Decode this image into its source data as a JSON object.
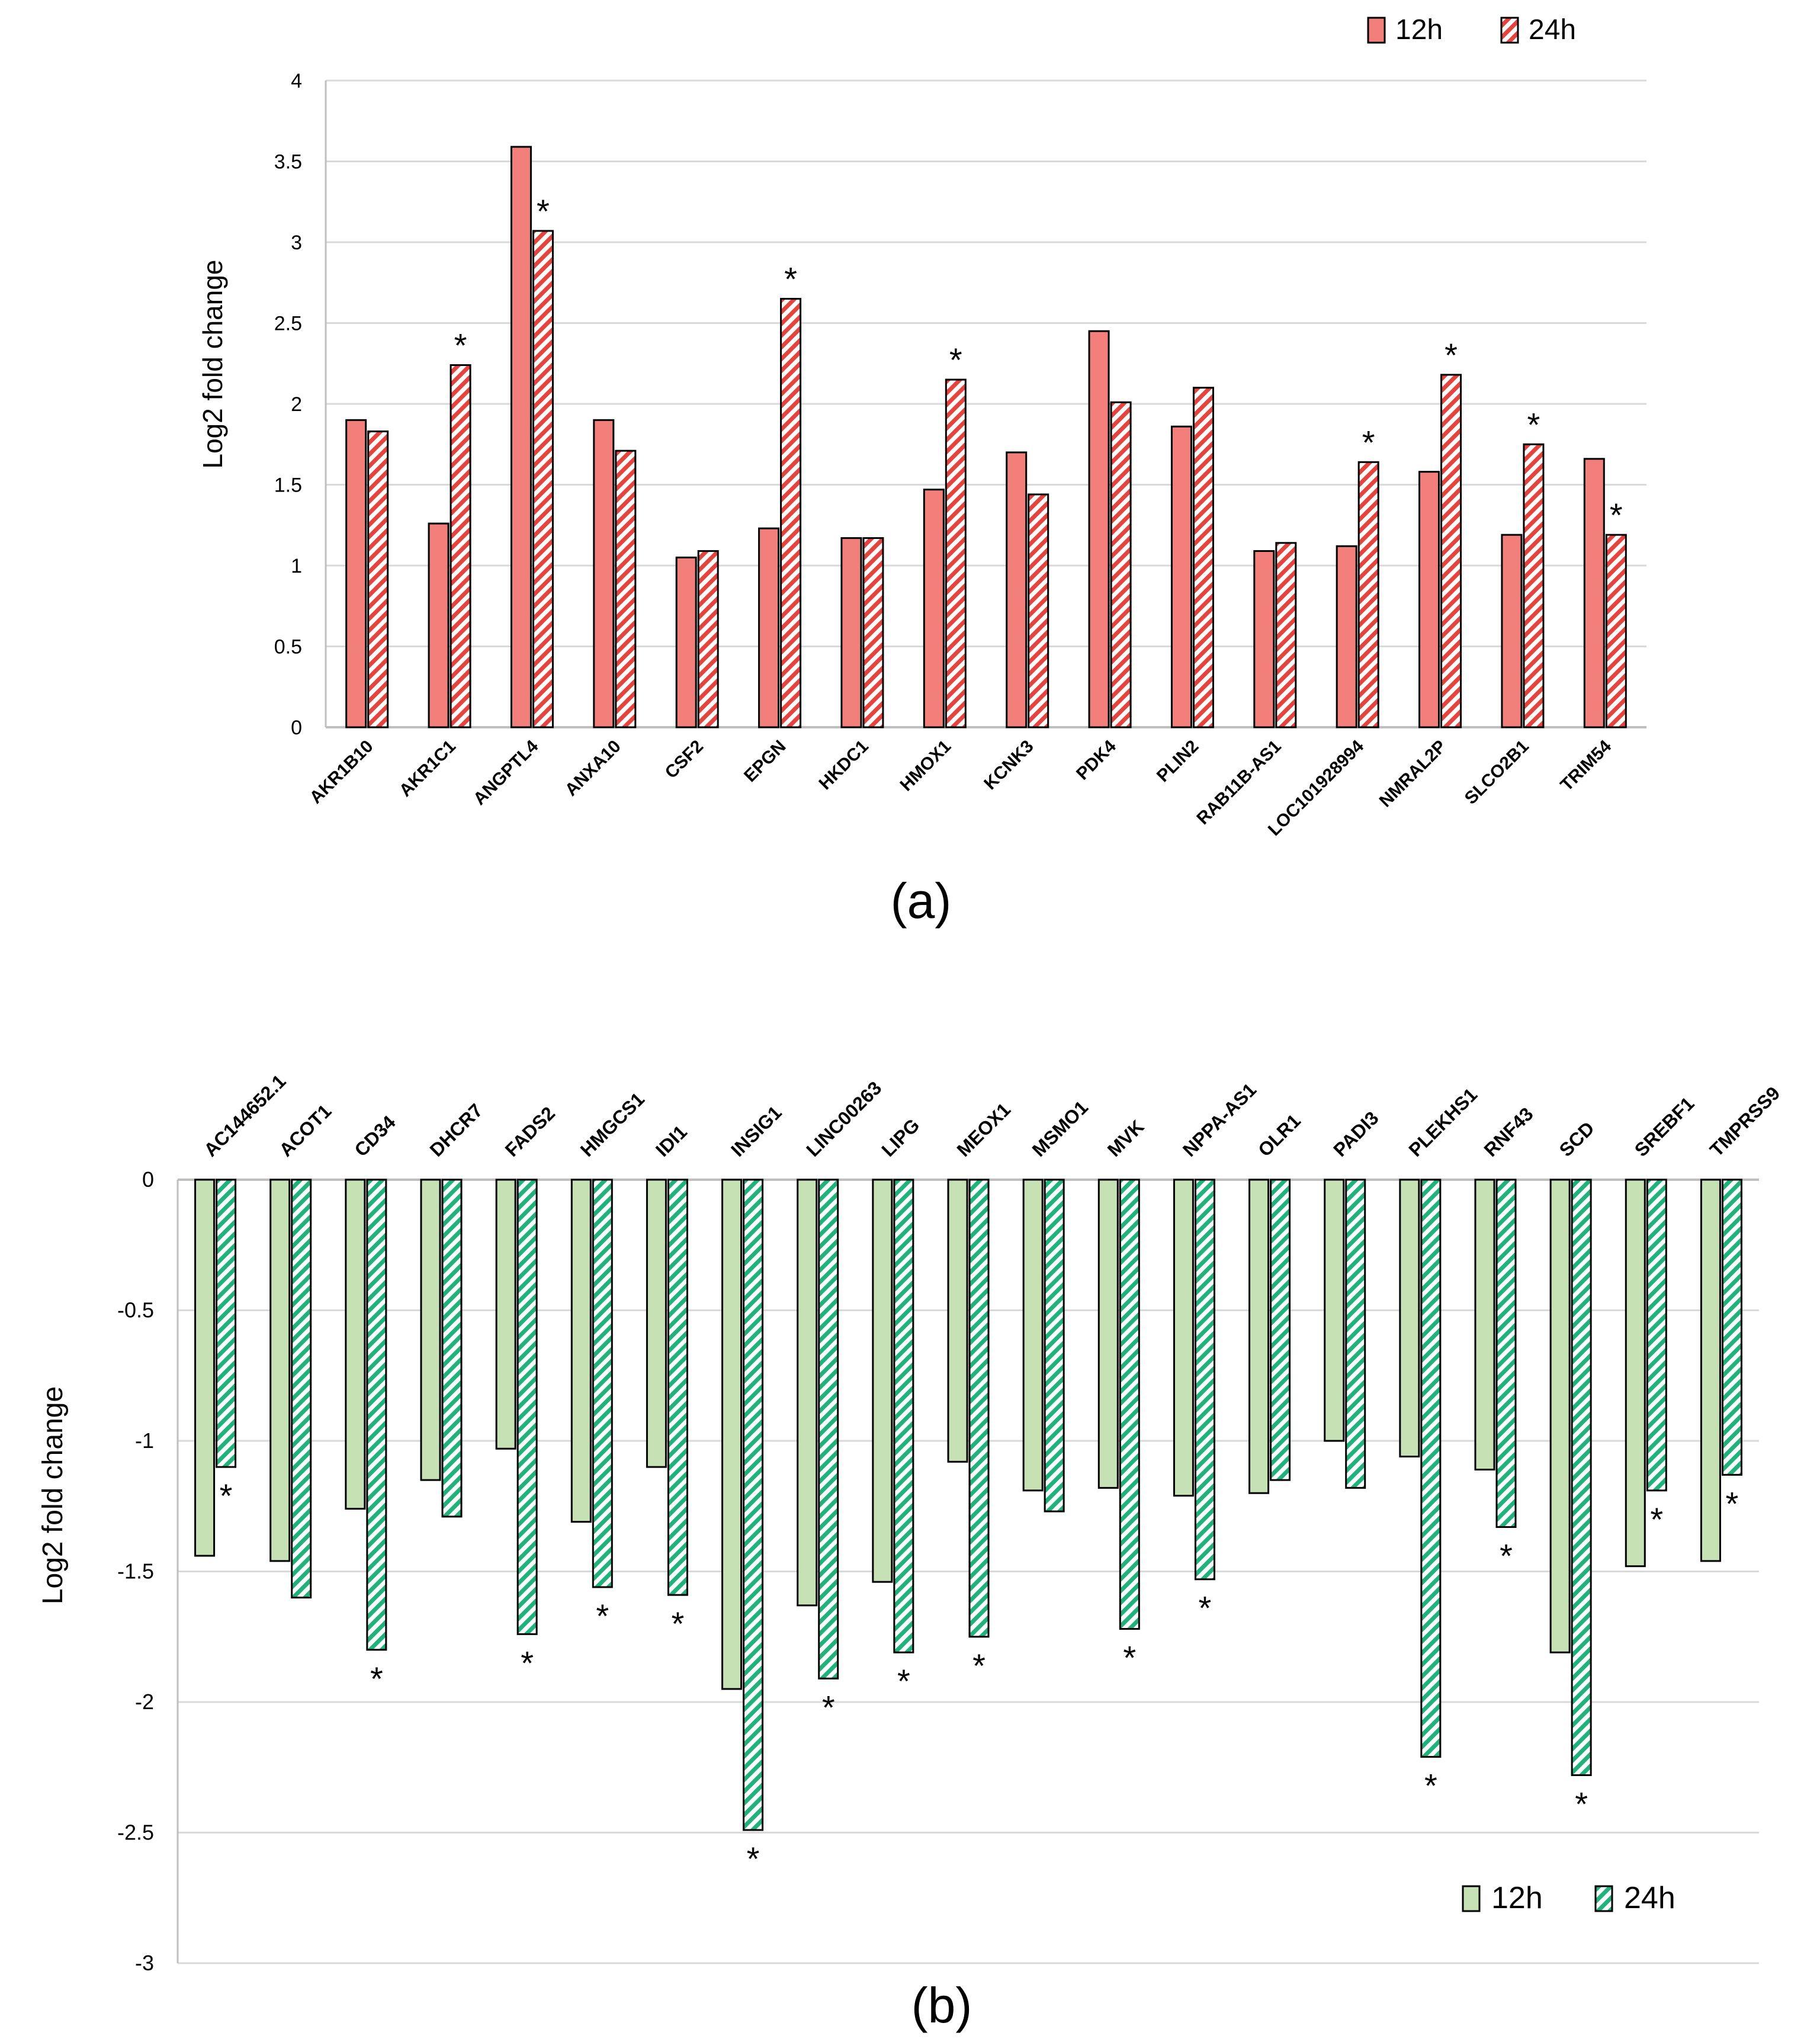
{
  "colors": {
    "a_fill": "#f27f7a",
    "a_stroke": "#000000",
    "b_fill": "#c6e2b4",
    "b_hatch": "#1db37a",
    "grid": "#d9d9d9",
    "axis": "#bfbfbf"
  },
  "chart_data": [
    {
      "panel_label": "(a)",
      "type": "bar",
      "ylabel": "Log2 fold change",
      "ylim": [
        0,
        4
      ],
      "y_ticks": [
        "0",
        "0.5",
        "1",
        "1.5",
        "2",
        "2.5",
        "3",
        "3.5",
        "4"
      ],
      "grid": true,
      "legend_position": "top-right",
      "categories": [
        "AKR1B10",
        "AKR1C1",
        "ANGPTL4",
        "ANXA10",
        "CSF2",
        "EPGN",
        "HKDC1",
        "HMOX1",
        "KCNK3",
        "PDK4",
        "PLIN2",
        "RAB11B-AS1",
        "LOC101928994",
        "NMRAL2P",
        "SLCO2B1",
        "TRIM54"
      ],
      "series": [
        {
          "name": "12h",
          "values": [
            1.9,
            1.26,
            3.59,
            1.9,
            1.05,
            1.23,
            1.17,
            1.47,
            1.7,
            2.45,
            1.86,
            1.09,
            1.12,
            1.58,
            1.19,
            1.66
          ]
        },
        {
          "name": "24h",
          "values": [
            1.83,
            2.24,
            3.07,
            1.71,
            1.09,
            2.65,
            1.17,
            2.15,
            1.44,
            2.01,
            2.1,
            1.14,
            1.64,
            2.18,
            1.75,
            1.19
          ]
        }
      ],
      "significance_marker": "*",
      "significant_24h": [
        false,
        true,
        true,
        false,
        false,
        true,
        false,
        true,
        false,
        false,
        false,
        false,
        true,
        true,
        true,
        true
      ]
    },
    {
      "panel_label": "(b)",
      "type": "bar",
      "ylabel": "Log2 fold change",
      "ylim": [
        -3,
        0
      ],
      "y_ticks": [
        "0",
        "-0.5",
        "-1",
        "-1.5",
        "-2",
        "-2.5",
        "-3"
      ],
      "grid": true,
      "legend_position": "bottom-right",
      "categories": [
        "AC144652.1",
        "ACOT1",
        "CD34",
        "DHCR7",
        "FADS2",
        "HMGCS1",
        "IDI1",
        "INSIG1",
        "LINC00263",
        "LIPG",
        "MEOX1",
        "MSMO1",
        "MVK",
        "NPPA-AS1",
        "OLR1",
        "PADI3",
        "PLEKHS1",
        "RNF43",
        "SCD",
        "SREBF1",
        "TMPRSS9"
      ],
      "series": [
        {
          "name": "12h",
          "values": [
            -1.44,
            -1.46,
            -1.26,
            -1.15,
            -1.03,
            -1.31,
            -1.1,
            -1.95,
            -1.63,
            -1.54,
            -1.08,
            -1.19,
            -1.18,
            -1.21,
            -1.2,
            -1.0,
            -1.06,
            -1.11,
            -1.81,
            -1.48,
            -1.46
          ]
        },
        {
          "name": "24h",
          "values": [
            -1.1,
            -1.6,
            -1.8,
            -1.29,
            -1.74,
            -1.56,
            -1.59,
            -2.49,
            -1.91,
            -1.81,
            -1.75,
            -1.27,
            -1.72,
            -1.53,
            -1.15,
            -1.18,
            -2.21,
            -1.33,
            -2.28,
            -1.19,
            -1.13
          ]
        }
      ],
      "significance_marker": "*",
      "significant_24h": [
        true,
        false,
        true,
        false,
        true,
        true,
        true,
        true,
        true,
        true,
        true,
        false,
        true,
        true,
        false,
        false,
        true,
        true,
        true,
        true,
        true
      ]
    }
  ]
}
